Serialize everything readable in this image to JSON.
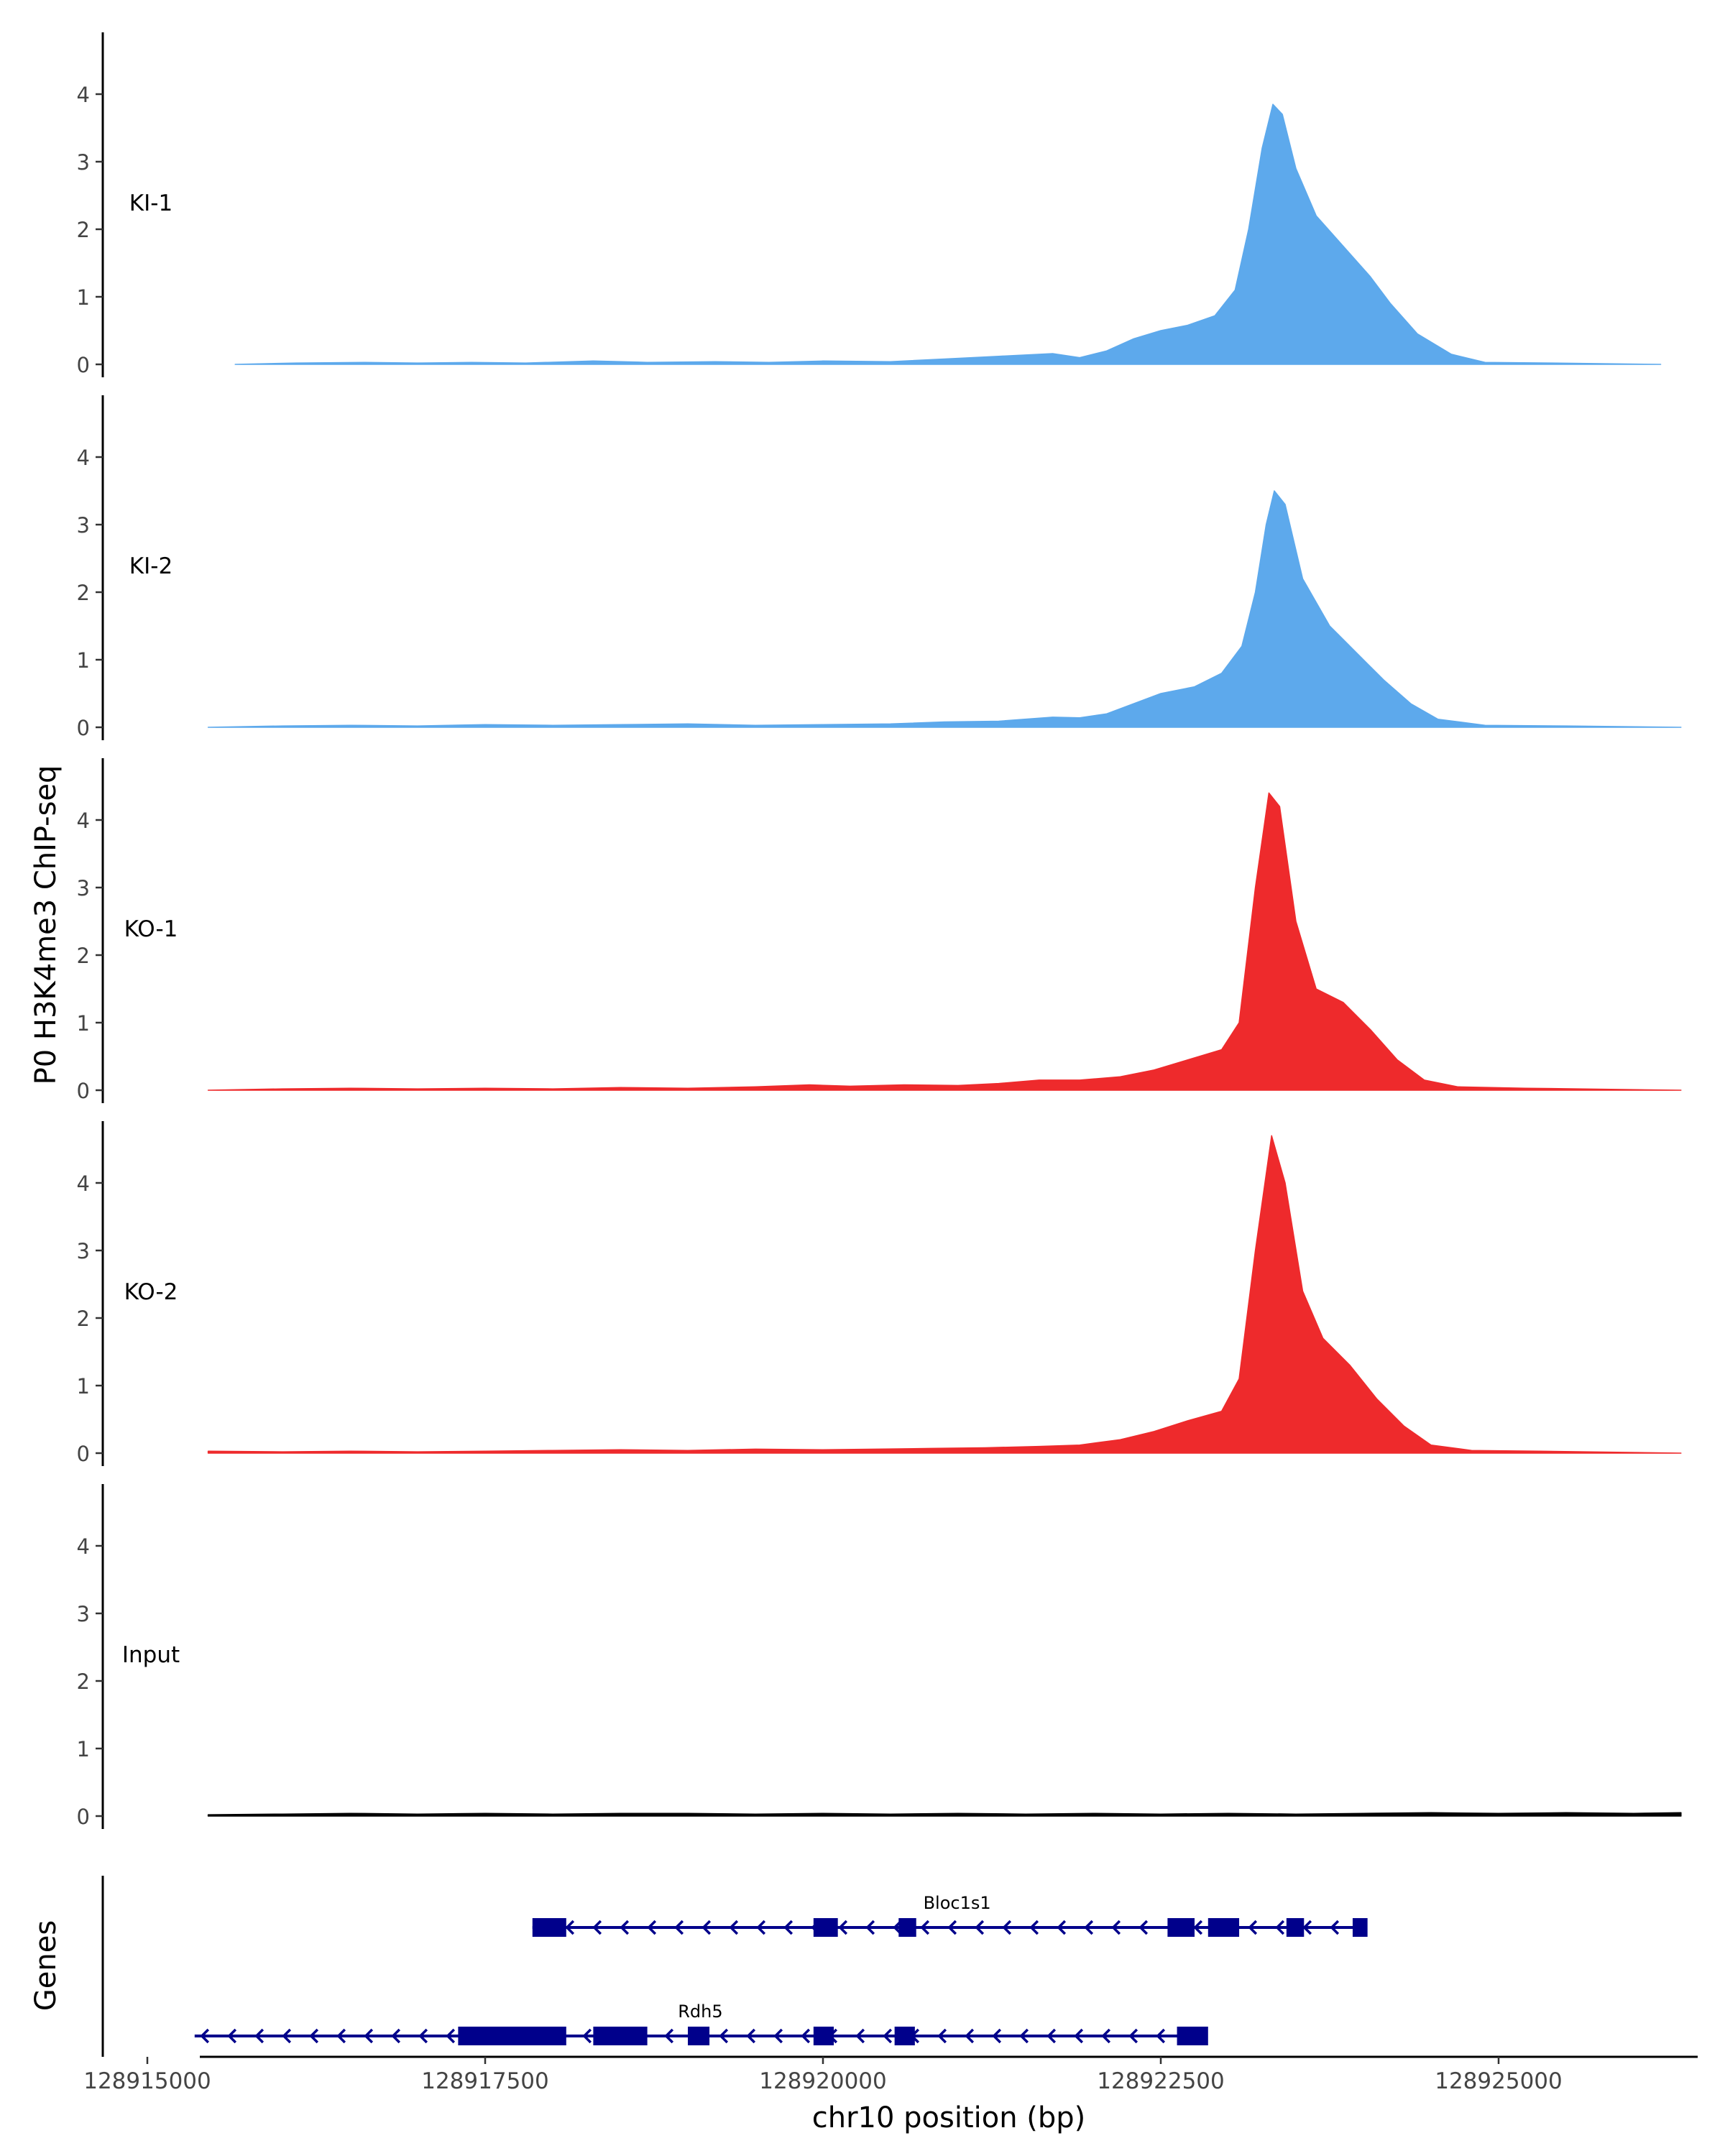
{
  "chart_data": {
    "type": "area",
    "ylabel": "P0 H3K4me3 ChIP-seq",
    "xlabel": "chr10 position (bp)",
    "ylim": [
      0,
      4.9
    ],
    "yticks": [
      "0",
      "1",
      "2",
      "3",
      "4"
    ],
    "xlim": [
      128914200,
      128926900
    ],
    "xticks": [
      {
        "label": "128915000",
        "value": 128915000
      },
      {
        "label": "128917500",
        "value": 128917500
      },
      {
        "label": "128920000",
        "value": 128920000
      },
      {
        "label": "128922500",
        "value": 128922500
      },
      {
        "label": "128925000",
        "value": 128925000
      }
    ],
    "series": [
      {
        "name": "KI-1",
        "color": "#5DA9EC",
        "points": [
          [
            128915650,
            0
          ],
          [
            128916100,
            0.02
          ],
          [
            128916600,
            0.03
          ],
          [
            128917000,
            0.02
          ],
          [
            128917400,
            0.03
          ],
          [
            128917800,
            0.02
          ],
          [
            128918300,
            0.05
          ],
          [
            128918700,
            0.03
          ],
          [
            128919200,
            0.04
          ],
          [
            128919600,
            0.03
          ],
          [
            128920000,
            0.05
          ],
          [
            128920500,
            0.04
          ],
          [
            128920900,
            0.08
          ],
          [
            128921300,
            0.12
          ],
          [
            128921700,
            0.16
          ],
          [
            128921900,
            0.1
          ],
          [
            128922100,
            0.2
          ],
          [
            128922300,
            0.38
          ],
          [
            128922500,
            0.5
          ],
          [
            128922700,
            0.58
          ],
          [
            128922900,
            0.72
          ],
          [
            128923050,
            1.1
          ],
          [
            128923150,
            2.0
          ],
          [
            128923250,
            3.2
          ],
          [
            128923330,
            3.85
          ],
          [
            128923400,
            3.7
          ],
          [
            128923500,
            2.9
          ],
          [
            128923650,
            2.2
          ],
          [
            128923850,
            1.75
          ],
          [
            128924050,
            1.3
          ],
          [
            128924200,
            0.9
          ],
          [
            128924400,
            0.45
          ],
          [
            128924650,
            0.15
          ],
          [
            128924900,
            0.03
          ],
          [
            128925400,
            0.02
          ],
          [
            128926200,
            0
          ]
        ]
      },
      {
        "name": "KI-2",
        "color": "#5DA9EC",
        "points": [
          [
            128915450,
            0
          ],
          [
            128916000,
            0.02
          ],
          [
            128916500,
            0.03
          ],
          [
            128917000,
            0.02
          ],
          [
            128917500,
            0.04
          ],
          [
            128918000,
            0.03
          ],
          [
            128918500,
            0.04
          ],
          [
            128919000,
            0.05
          ],
          [
            128919500,
            0.03
          ],
          [
            128920000,
            0.04
          ],
          [
            128920500,
            0.05
          ],
          [
            128920900,
            0.08
          ],
          [
            128921300,
            0.09
          ],
          [
            128921700,
            0.15
          ],
          [
            128921900,
            0.14
          ],
          [
            128922100,
            0.2
          ],
          [
            128922300,
            0.35
          ],
          [
            128922500,
            0.5
          ],
          [
            128922750,
            0.6
          ],
          [
            128922950,
            0.8
          ],
          [
            128923100,
            1.2
          ],
          [
            128923200,
            2.0
          ],
          [
            128923280,
            3.0
          ],
          [
            128923340,
            3.5
          ],
          [
            128923420,
            3.3
          ],
          [
            128923550,
            2.2
          ],
          [
            128923750,
            1.5
          ],
          [
            128923950,
            1.1
          ],
          [
            128924150,
            0.7
          ],
          [
            128924350,
            0.35
          ],
          [
            128924550,
            0.12
          ],
          [
            128924900,
            0.03
          ],
          [
            128925500,
            0.02
          ],
          [
            128926350,
            0
          ]
        ]
      },
      {
        "name": "KO-1",
        "color": "#EE2A2C",
        "points": [
          [
            128915450,
            0
          ],
          [
            128916000,
            0.02
          ],
          [
            128916500,
            0.03
          ],
          [
            128917000,
            0.02
          ],
          [
            128917500,
            0.03
          ],
          [
            128918000,
            0.02
          ],
          [
            128918500,
            0.04
          ],
          [
            128919000,
            0.03
          ],
          [
            128919500,
            0.05
          ],
          [
            128919900,
            0.08
          ],
          [
            128920200,
            0.06
          ],
          [
            128920600,
            0.08
          ],
          [
            128921000,
            0.07
          ],
          [
            128921300,
            0.1
          ],
          [
            128921600,
            0.15
          ],
          [
            128921900,
            0.15
          ],
          [
            128922200,
            0.2
          ],
          [
            128922450,
            0.3
          ],
          [
            128922700,
            0.45
          ],
          [
            128922950,
            0.6
          ],
          [
            128923080,
            1.0
          ],
          [
            128923200,
            3.0
          ],
          [
            128923300,
            4.4
          ],
          [
            128923380,
            4.2
          ],
          [
            128923500,
            2.5
          ],
          [
            128923650,
            1.5
          ],
          [
            128923850,
            1.3
          ],
          [
            128924050,
            0.9
          ],
          [
            128924250,
            0.45
          ],
          [
            128924450,
            0.15
          ],
          [
            128924700,
            0.05
          ],
          [
            128925200,
            0.03
          ],
          [
            128926350,
            0
          ]
        ]
      },
      {
        "name": "KO-2",
        "color": "#EE2A2C",
        "points": [
          [
            128915450,
            0.03
          ],
          [
            128916000,
            0.02
          ],
          [
            128916500,
            0.03
          ],
          [
            128917000,
            0.02
          ],
          [
            128917500,
            0.03
          ],
          [
            128918000,
            0.04
          ],
          [
            128918500,
            0.05
          ],
          [
            128919000,
            0.04
          ],
          [
            128919500,
            0.06
          ],
          [
            128920000,
            0.05
          ],
          [
            128920400,
            0.06
          ],
          [
            128920800,
            0.07
          ],
          [
            128921200,
            0.08
          ],
          [
            128921600,
            0.1
          ],
          [
            128921900,
            0.12
          ],
          [
            128922200,
            0.2
          ],
          [
            128922450,
            0.32
          ],
          [
            128922700,
            0.48
          ],
          [
            128922950,
            0.62
          ],
          [
            128923080,
            1.1
          ],
          [
            128923200,
            3.0
          ],
          [
            128923320,
            4.7
          ],
          [
            128923420,
            4.0
          ],
          [
            128923550,
            2.4
          ],
          [
            128923700,
            1.7
          ],
          [
            128923900,
            1.3
          ],
          [
            128924100,
            0.8
          ],
          [
            128924300,
            0.4
          ],
          [
            128924500,
            0.12
          ],
          [
            128924800,
            0.04
          ],
          [
            128925300,
            0.03
          ],
          [
            128926350,
            0
          ]
        ]
      },
      {
        "name": "Input",
        "color": "#000000",
        "points": [
          [
            128915450,
            0.02
          ],
          [
            128916000,
            0.03
          ],
          [
            128916500,
            0.04
          ],
          [
            128917000,
            0.03
          ],
          [
            128917500,
            0.04
          ],
          [
            128918000,
            0.03
          ],
          [
            128918500,
            0.04
          ],
          [
            128919000,
            0.04
          ],
          [
            128919500,
            0.03
          ],
          [
            128920000,
            0.04
          ],
          [
            128920500,
            0.03
          ],
          [
            128921000,
            0.04
          ],
          [
            128921500,
            0.03
          ],
          [
            128922000,
            0.04
          ],
          [
            128922500,
            0.03
          ],
          [
            128923000,
            0.04
          ],
          [
            128923500,
            0.03
          ],
          [
            128924000,
            0.04
          ],
          [
            128924500,
            0.05
          ],
          [
            128925000,
            0.04
          ],
          [
            128925500,
            0.05
          ],
          [
            128926000,
            0.04
          ],
          [
            128926350,
            0.05
          ]
        ]
      }
    ],
    "genes_track": {
      "label": "Genes",
      "color": "#00008B",
      "genes": [
        {
          "name": "Bloc1s1",
          "row": 0,
          "start": 128917850,
          "end": 128924000,
          "exons": [
            [
              128917850,
              128918100
            ],
            [
              128919930,
              128920110
            ],
            [
              128920560,
              128920690
            ],
            [
              128922550,
              128922750
            ],
            [
              128922850,
              128923080
            ],
            [
              128923430,
              128923560
            ],
            [
              128923920,
              128924030
            ]
          ]
        },
        {
          "name": "Rdh5",
          "row": 1,
          "start": 128915350,
          "end": 128922750,
          "exons": [
            [
              128917300,
              128918100
            ],
            [
              128918300,
              128918700
            ],
            [
              128919000,
              128919160
            ],
            [
              128919930,
              128920080
            ],
            [
              128920530,
              128920680
            ],
            [
              128922620,
              128922850
            ]
          ]
        }
      ]
    }
  }
}
